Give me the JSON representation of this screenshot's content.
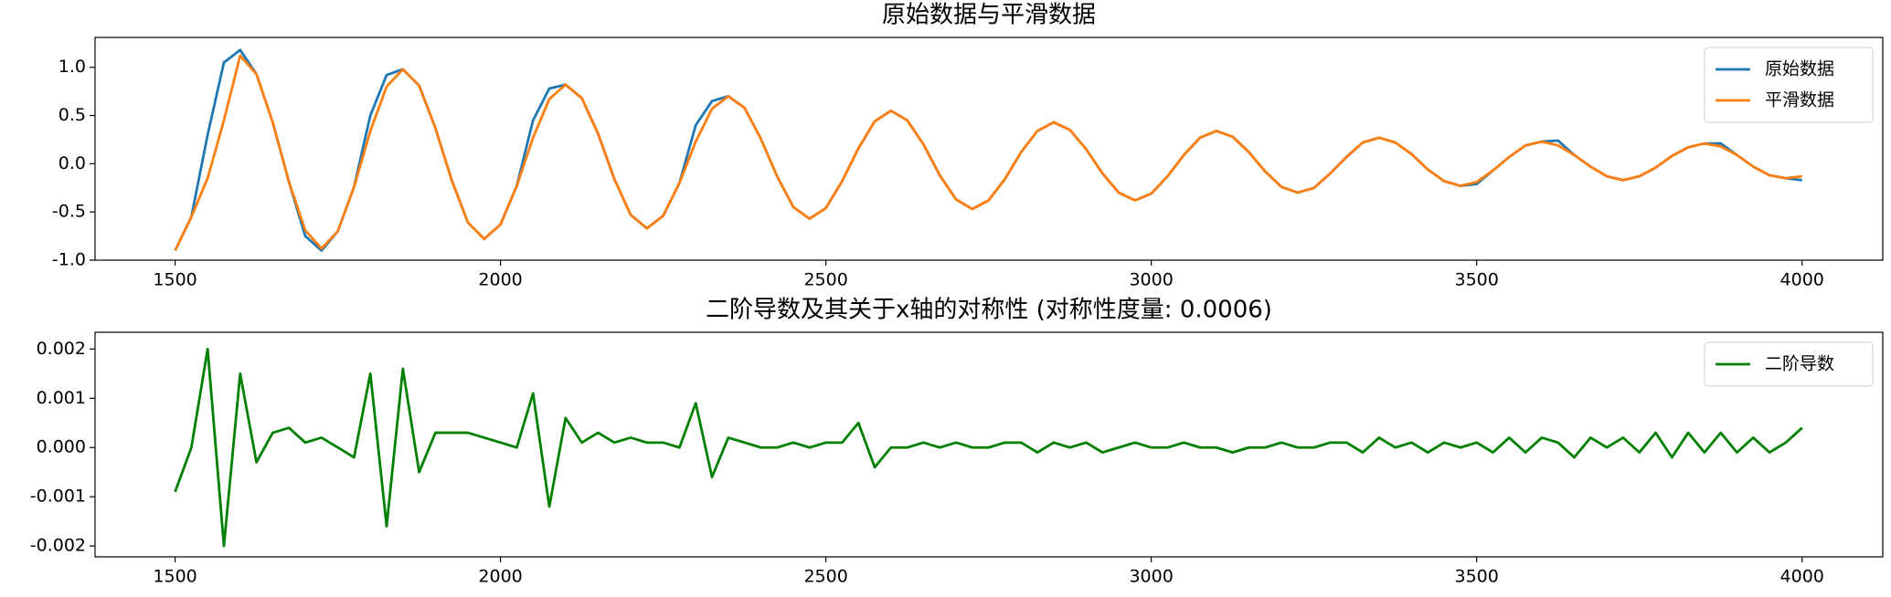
{
  "chart_data": [
    {
      "type": "line",
      "title": "原始数据与平滑数据",
      "x": [
        1500,
        1525,
        1550,
        1575,
        1600,
        1625,
        1650,
        1675,
        1700,
        1725,
        1750,
        1775,
        1800,
        1825,
        1850,
        1875,
        1900,
        1925,
        1950,
        1975,
        2000,
        2025,
        2050,
        2075,
        2100,
        2125,
        2150,
        2175,
        2200,
        2225,
        2250,
        2275,
        2300,
        2325,
        2350,
        2375,
        2400,
        2425,
        2450,
        2475,
        2500,
        2525,
        2550,
        2575,
        2600,
        2625,
        2650,
        2675,
        2700,
        2725,
        2750,
        2775,
        2800,
        2825,
        2850,
        2875,
        2900,
        2925,
        2950,
        2975,
        3000,
        3025,
        3050,
        3075,
        3100,
        3125,
        3150,
        3175,
        3200,
        3225,
        3250,
        3275,
        3300,
        3325,
        3350,
        3375,
        3400,
        3425,
        3450,
        3475,
        3500,
        3525,
        3550,
        3575,
        3600,
        3625,
        3650,
        3675,
        3700,
        3725,
        3750,
        3775,
        3800,
        3825,
        3850,
        3875,
        3900,
        3925,
        3950,
        3975,
        4000
      ],
      "series": [
        {
          "name": "原始数据",
          "color": "#1f77b4",
          "values": [
            -0.9,
            -0.55,
            0.3,
            1.05,
            1.18,
            0.93,
            0.43,
            -0.19,
            -0.75,
            -0.9,
            -0.7,
            -0.24,
            0.5,
            0.92,
            0.98,
            0.81,
            0.37,
            -0.17,
            -0.61,
            -0.78,
            -0.63,
            -0.23,
            0.45,
            0.78,
            0.82,
            0.68,
            0.31,
            -0.16,
            -0.53,
            -0.67,
            -0.54,
            -0.2,
            0.4,
            0.65,
            0.7,
            0.58,
            0.26,
            -0.13,
            -0.45,
            -0.57,
            -0.46,
            -0.18,
            0.16,
            0.44,
            0.55,
            0.45,
            0.2,
            -0.12,
            -0.37,
            -0.47,
            -0.38,
            -0.16,
            0.12,
            0.34,
            0.43,
            0.35,
            0.15,
            -0.1,
            -0.3,
            -0.38,
            -0.31,
            -0.13,
            0.09,
            0.27,
            0.34,
            0.28,
            0.12,
            -0.08,
            -0.24,
            -0.3,
            -0.25,
            -0.1,
            0.07,
            0.22,
            0.27,
            0.22,
            0.1,
            -0.06,
            -0.18,
            -0.23,
            -0.21,
            -0.07,
            0.07,
            0.19,
            0.23,
            0.24,
            0.09,
            -0.03,
            -0.13,
            -0.17,
            -0.13,
            -0.04,
            0.08,
            0.17,
            0.21,
            0.21,
            0.09,
            -0.03,
            -0.12,
            -0.15,
            -0.17
          ]
        },
        {
          "name": "平滑数据",
          "color": "#ff7f0e",
          "values": [
            -0.9,
            -0.55,
            -0.15,
            0.45,
            1.12,
            0.93,
            0.43,
            -0.19,
            -0.69,
            -0.88,
            -0.7,
            -0.24,
            0.34,
            0.8,
            0.98,
            0.81,
            0.37,
            -0.17,
            -0.61,
            -0.78,
            -0.63,
            -0.23,
            0.27,
            0.67,
            0.82,
            0.68,
            0.31,
            -0.16,
            -0.53,
            -0.67,
            -0.54,
            -0.2,
            0.23,
            0.57,
            0.7,
            0.58,
            0.26,
            -0.13,
            -0.45,
            -0.57,
            -0.46,
            -0.18,
            0.16,
            0.44,
            0.55,
            0.45,
            0.2,
            -0.12,
            -0.37,
            -0.47,
            -0.38,
            -0.16,
            0.12,
            0.34,
            0.43,
            0.35,
            0.15,
            -0.1,
            -0.3,
            -0.38,
            -0.31,
            -0.13,
            0.09,
            0.27,
            0.34,
            0.28,
            0.12,
            -0.08,
            -0.24,
            -0.3,
            -0.25,
            -0.1,
            0.07,
            0.22,
            0.27,
            0.22,
            0.1,
            -0.06,
            -0.18,
            -0.23,
            -0.19,
            -0.07,
            0.07,
            0.19,
            0.23,
            0.19,
            0.09,
            -0.03,
            -0.13,
            -0.17,
            -0.13,
            -0.04,
            0.08,
            0.17,
            0.21,
            0.18,
            0.09,
            -0.03,
            -0.12,
            -0.15,
            -0.13
          ]
        }
      ],
      "xlim": [
        1377,
        4124
      ],
      "ylim": [
        -1.0,
        1.31
      ],
      "xticks": [
        1500,
        2000,
        2500,
        3000,
        3500,
        4000
      ],
      "yticks": [
        {
          "value": -1.0,
          "label": "-1.0"
        },
        -0.5,
        {
          "value": 0.0,
          "label": "0.0"
        },
        0.5,
        {
          "value": 1.0,
          "label": "1.0"
        }
      ],
      "grid": false,
      "legend": "upper right"
    },
    {
      "type": "line",
      "title": "二阶导数及其关于x轴的对称性 (对称性度量: 0.0006)",
      "x": [
        1500,
        1525,
        1550,
        1575,
        1600,
        1625,
        1650,
        1675,
        1700,
        1725,
        1750,
        1775,
        1800,
        1825,
        1850,
        1875,
        1900,
        1925,
        1950,
        1975,
        2000,
        2025,
        2050,
        2075,
        2100,
        2125,
        2150,
        2175,
        2200,
        2225,
        2250,
        2275,
        2300,
        2325,
        2350,
        2375,
        2400,
        2425,
        2450,
        2475,
        2500,
        2525,
        2550,
        2575,
        2600,
        2625,
        2650,
        2675,
        2700,
        2725,
        2750,
        2775,
        2800,
        2825,
        2850,
        2875,
        2900,
        2925,
        2950,
        2975,
        3000,
        3025,
        3050,
        3075,
        3100,
        3125,
        3150,
        3175,
        3200,
        3225,
        3250,
        3275,
        3300,
        3325,
        3350,
        3375,
        3400,
        3425,
        3450,
        3475,
        3500,
        3525,
        3550,
        3575,
        3600,
        3625,
        3650,
        3675,
        3700,
        3725,
        3750,
        3775,
        3800,
        3825,
        3850,
        3875,
        3900,
        3925,
        3950,
        3975,
        4000
      ],
      "series": [
        {
          "name": "二阶导数",
          "color": "#008000",
          "values": [
            -0.0009,
            0,
            0.002,
            -0.002,
            0.0015,
            -0.0003,
            0.0003,
            0.0004,
            0.0001,
            0.0002,
            0,
            -0.0002,
            0.0015,
            -0.0016,
            0.0016,
            -0.0005,
            0.0003,
            0.0003,
            0.0003,
            0.0002,
            0.0001,
            0,
            0.0011,
            -0.0012,
            0.0006,
            0.0001,
            0.0003,
            0.0001,
            0.0002,
            0.0001,
            0.0001,
            0,
            0.0009,
            -0.0006,
            0.0002,
            0.0001,
            0,
            0,
            0.0001,
            0,
            0.0001,
            0.0001,
            0.0005,
            -0.0004,
            0,
            0,
            0.0001,
            0,
            0.0001,
            0,
            0,
            0.0001,
            0.0001,
            -0.0001,
            0.0001,
            0,
            0.0001,
            -0.0001,
            0,
            0.0001,
            0,
            0,
            0.0001,
            0,
            0,
            -0.0001,
            0,
            0,
            0.0001,
            0,
            0,
            0.0001,
            0.0001,
            -0.0001,
            0.0002,
            0,
            0.0001,
            -0.0001,
            0.0001,
            0,
            0.0001,
            -0.0001,
            0.0002,
            -0.0001,
            0.0002,
            0.0001,
            -0.0002,
            0.0002,
            0,
            0.0002,
            -0.0001,
            0.0003,
            -0.0002,
            0.0003,
            -0.0001,
            0.0003,
            -0.0001,
            0.0002,
            -0.0001,
            0.0001,
            0.0004
          ]
        }
      ],
      "xlim": [
        1377,
        4124
      ],
      "ylim": [
        -0.00222,
        0.00234
      ],
      "xticks": [
        1500,
        2000,
        2500,
        3000,
        3500,
        4000
      ],
      "yticks": [
        -0.002,
        -0.001,
        {
          "value": 0,
          "label": "0.000"
        },
        0.001,
        0.002
      ],
      "grid": false,
      "legend": "upper right"
    }
  ]
}
